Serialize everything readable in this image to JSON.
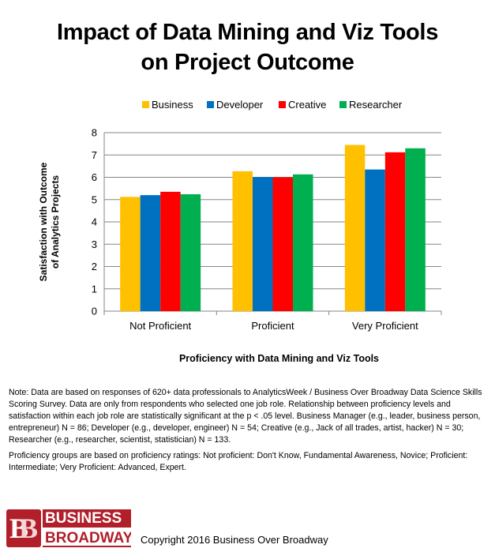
{
  "chart_data": {
    "type": "bar",
    "title_lines": [
      "Impact of Data Mining and Viz Tools",
      "on Project Outcome"
    ],
    "xlabel": "Proficiency with Data Mining and Viz Tools",
    "ylabel_lines": [
      "Satisfaction with Outcome",
      "of Analytics Projects"
    ],
    "categories": [
      "Not Proficient",
      "Proficient",
      "Very Proficient"
    ],
    "ylim": [
      0,
      8
    ],
    "yticks": [
      0,
      1,
      2,
      3,
      4,
      5,
      6,
      7,
      8
    ],
    "grid": true,
    "legend_position": "top",
    "series": [
      {
        "name": "Business",
        "color": "#FFC000",
        "values": [
          5.12,
          6.27,
          7.45
        ]
      },
      {
        "name": "Developer",
        "color": "#0070C0",
        "values": [
          5.2,
          6.01,
          6.35
        ]
      },
      {
        "name": "Creative",
        "color": "#FF0000",
        "values": [
          5.35,
          6.0,
          7.12
        ]
      },
      {
        "name": "Researcher",
        "color": "#00B050",
        "values": [
          5.24,
          6.13,
          7.3
        ]
      }
    ]
  },
  "note": {
    "paragraph1": "Note: Data are based on responses of 620+ data professionals to AnalyticsWeek / Business Over Broadway Data Science Skills Scoring Survey. Data are only from respondents who selected one job role. Relationship between proficiency levels and satisfaction within each job role are statistically significant at the p < .05 level. Business Manager (e.g., leader, business person, entrepreneur) N = 86; Developer (e.g., developer, engineer) N = 54; Creative (e.g., Jack of all trades, artist, hacker) N = 30; Researcher (e.g., researcher, scientist, statistician) N = 133.",
    "paragraph2": "Proficiency groups are based on proficiency ratings: Not proficient: Don't Know, Fundamental Awareness, Novice; Proficient: Intermediate; Very Proficient: Advanced, Expert."
  },
  "logo": {
    "line1": "BUSINESS",
    "line2": "BROADWAY",
    "mark": "BB"
  },
  "copyright": "Copyright 2016 Business Over Broadway"
}
